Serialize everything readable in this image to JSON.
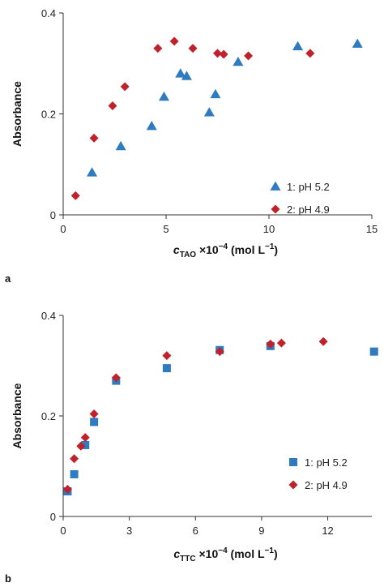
{
  "chart_data": [
    {
      "panel": "a",
      "type": "scatter",
      "xlabel": {
        "var": "c",
        "sub": "TAO",
        "rest": " ×10",
        "exp": "−4",
        "unit": " (mol L",
        "unit_exp": "−1",
        "close": ")"
      },
      "ylabel": "Absorbance",
      "xlim": [
        0,
        15
      ],
      "ylim": [
        0,
        0.4
      ],
      "xticks": [
        0,
        5,
        10,
        15
      ],
      "yticks": [
        0,
        0.2,
        0.4
      ],
      "ytick_labels": [
        "0",
        "0.2",
        "0.4"
      ],
      "grid": false,
      "legend_position": "right",
      "series": [
        {
          "name": "1: pH 5.2",
          "marker": "triangle",
          "color": "#2e7bbf",
          "points": [
            [
              1.4,
              0.084
            ],
            [
              2.8,
              0.136
            ],
            [
              4.3,
              0.176
            ],
            [
              4.9,
              0.234
            ],
            [
              5.7,
              0.28
            ],
            [
              6.0,
              0.275
            ],
            [
              7.1,
              0.203
            ],
            [
              7.4,
              0.239
            ],
            [
              8.5,
              0.303
            ],
            [
              11.4,
              0.334
            ],
            [
              14.3,
              0.339
            ]
          ]
        },
        {
          "name": "2: pH 4.9",
          "marker": "diamond",
          "color": "#c0222b",
          "points": [
            [
              0.6,
              0.038
            ],
            [
              1.5,
              0.152
            ],
            [
              2.4,
              0.216
            ],
            [
              3.0,
              0.254
            ],
            [
              4.6,
              0.33
            ],
            [
              5.4,
              0.344
            ],
            [
              6.3,
              0.33
            ],
            [
              7.5,
              0.32
            ],
            [
              7.8,
              0.318
            ],
            [
              9.0,
              0.315
            ],
            [
              12.0,
              0.32
            ]
          ]
        }
      ]
    },
    {
      "panel": "b",
      "type": "scatter",
      "xlabel": {
        "var": "c",
        "sub": "TTC",
        "rest": " ×10",
        "exp": "−4",
        "unit": " (mol L",
        "unit_exp": "−1",
        "close": ")"
      },
      "ylabel": "Absorbance",
      "xlim": [
        0,
        14
      ],
      "ylim": [
        0,
        0.4
      ],
      "xticks": [
        0,
        3,
        6,
        9,
        12
      ],
      "yticks": [
        0,
        0.2,
        0.4
      ],
      "ytick_labels": [
        "0",
        "0.2",
        "0.4"
      ],
      "grid": false,
      "legend_position": "bottom-right",
      "series": [
        {
          "name": "1: pH 5.2",
          "marker": "square",
          "color": "#2e7bbf",
          "points": [
            [
              0.2,
              0.05
            ],
            [
              0.5,
              0.084
            ],
            [
              1.0,
              0.142
            ],
            [
              1.4,
              0.188
            ],
            [
              2.4,
              0.27
            ],
            [
              4.7,
              0.295
            ],
            [
              7.1,
              0.331
            ],
            [
              9.4,
              0.339
            ],
            [
              14.1,
              0.328
            ]
          ]
        },
        {
          "name": "2: pH 4.9",
          "marker": "diamond",
          "color": "#c0222b",
          "points": [
            [
              0.2,
              0.054
            ],
            [
              0.5,
              0.115
            ],
            [
              0.8,
              0.14
            ],
            [
              1.0,
              0.157
            ],
            [
              1.4,
              0.204
            ],
            [
              2.4,
              0.276
            ],
            [
              4.7,
              0.32
            ],
            [
              7.1,
              0.328
            ],
            [
              9.4,
              0.343
            ],
            [
              9.9,
              0.345
            ],
            [
              11.8,
              0.348
            ]
          ]
        }
      ]
    }
  ]
}
